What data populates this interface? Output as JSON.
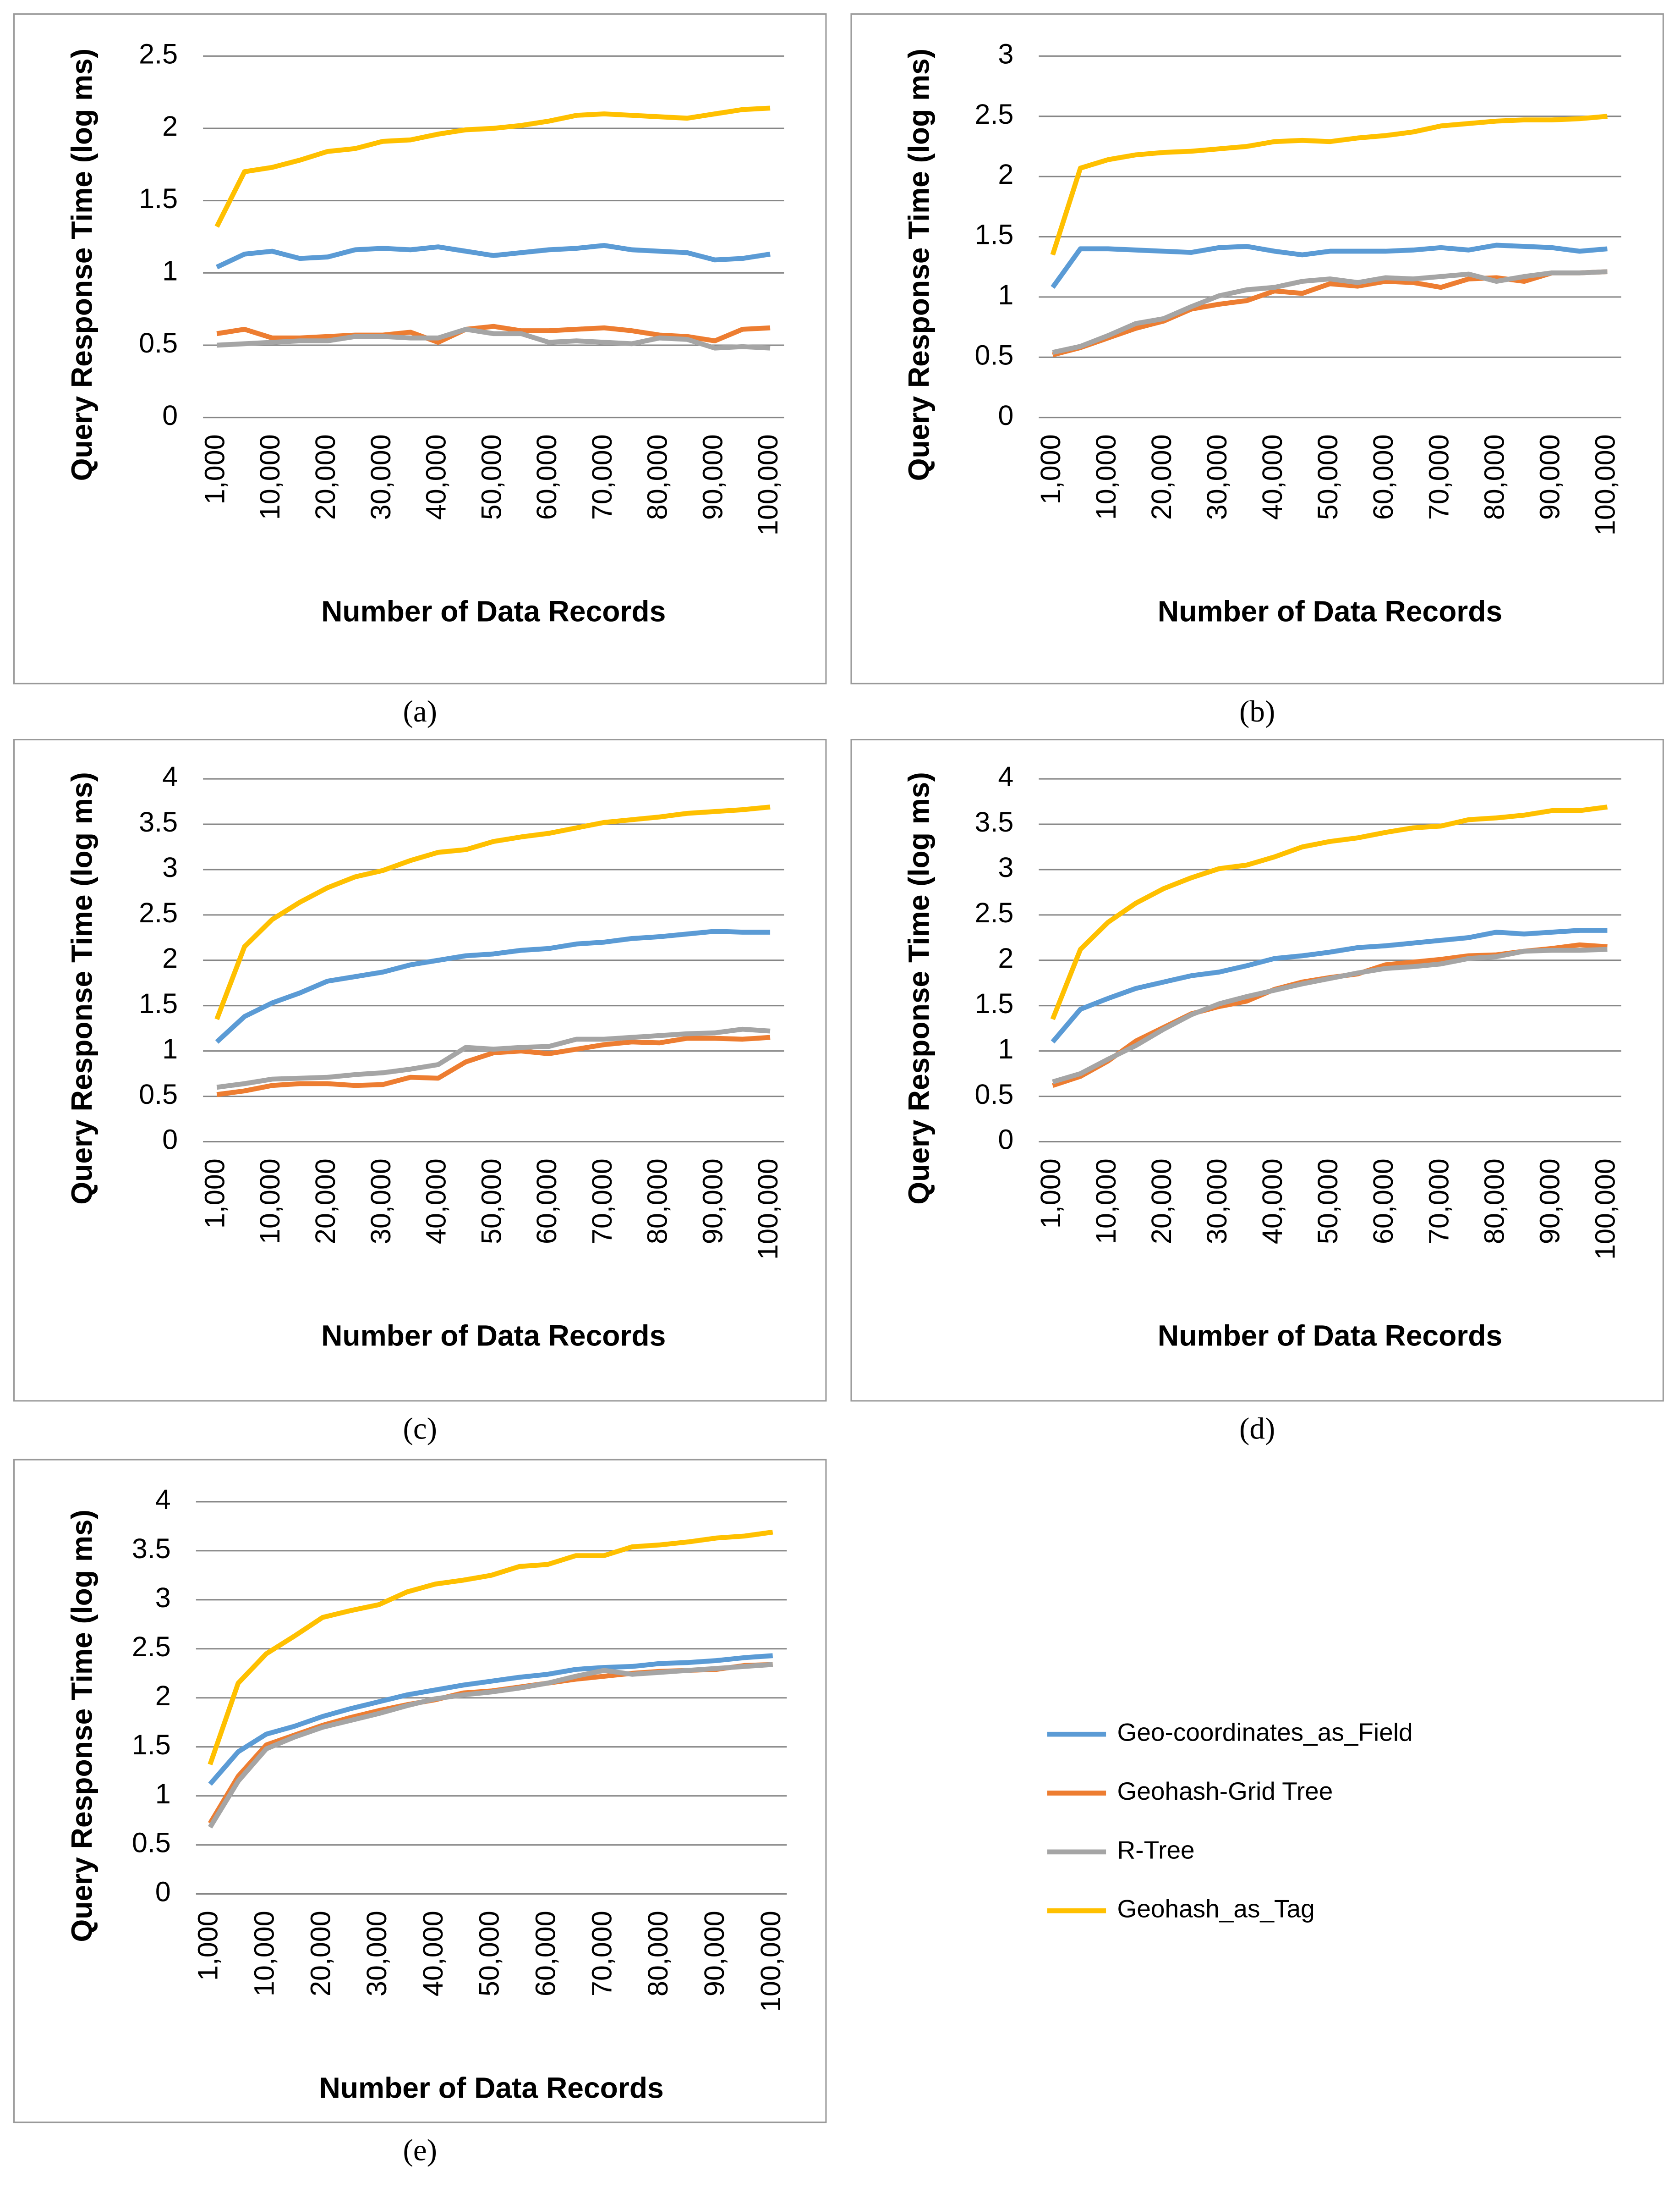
{
  "chart_data": [
    {
      "type": "line",
      "caption": "(a)",
      "y_label": "Query Response Time (log ms)",
      "x_label": "Number of Data Records",
      "categories": [
        "1,000",
        null,
        "10,000",
        null,
        "20,000",
        null,
        "30,000",
        null,
        "40,000",
        null,
        "50,000",
        null,
        "60,000",
        null,
        "70,000",
        null,
        "80,000",
        null,
        "90,000",
        null,
        "100,000"
      ],
      "ylim": [
        0,
        2.5
      ],
      "yticks": [
        0,
        0.5,
        1,
        1.5,
        2,
        2.5
      ],
      "grid": true,
      "series": [
        {
          "color": "#5b9bd5",
          "values": [
            1.04,
            1.13,
            1.15,
            1.1,
            1.11,
            1.16,
            1.17,
            1.16,
            1.18,
            1.15,
            1.12,
            1.14,
            1.16,
            1.17,
            1.19,
            1.16,
            1.15,
            1.14,
            1.09,
            1.1,
            1.13
          ]
        },
        {
          "color": "#ed7d31",
          "values": [
            0.58,
            0.61,
            0.55,
            0.55,
            0.56,
            0.57,
            0.57,
            0.59,
            0.52,
            0.61,
            0.63,
            0.6,
            0.6,
            0.61,
            0.62,
            0.6,
            0.57,
            0.56,
            0.53,
            0.61,
            0.62
          ]
        },
        {
          "color": "#a5a5a5",
          "values": [
            0.5,
            0.51,
            0.52,
            0.53,
            0.53,
            0.56,
            0.56,
            0.55,
            0.55,
            0.61,
            0.58,
            0.58,
            0.52,
            0.53,
            0.52,
            0.51,
            0.55,
            0.54,
            0.48,
            0.49,
            0.48
          ]
        },
        {
          "color": "#ffc000",
          "values": [
            1.32,
            1.7,
            1.73,
            1.78,
            1.84,
            1.86,
            1.91,
            1.92,
            1.96,
            1.99,
            2.0,
            2.02,
            2.05,
            2.09,
            2.1,
            2.09,
            2.08,
            2.07,
            2.1,
            2.13,
            2.14
          ]
        }
      ]
    },
    {
      "type": "line",
      "caption": "(b)",
      "y_label": "Query Response Time (log ms)",
      "x_label": "Number of Data Records",
      "categories": [
        "1,000",
        null,
        "10,000",
        null,
        "20,000",
        null,
        "30,000",
        null,
        "40,000",
        null,
        "50,000",
        null,
        "60,000",
        null,
        "70,000",
        null,
        "80,000",
        null,
        "90,000",
        null,
        "100,000"
      ],
      "ylim": [
        0,
        3
      ],
      "yticks": [
        0,
        0.5,
        1,
        1.5,
        2,
        2.5,
        3
      ],
      "grid": true,
      "series": [
        {
          "color": "#5b9bd5",
          "values": [
            1.08,
            1.4,
            1.4,
            1.39,
            1.38,
            1.37,
            1.41,
            1.42,
            1.38,
            1.35,
            1.38,
            1.38,
            1.38,
            1.39,
            1.41,
            1.39,
            1.43,
            1.42,
            1.41,
            1.38,
            1.4
          ]
        },
        {
          "color": "#ed7d31",
          "values": [
            0.52,
            0.58,
            0.66,
            0.74,
            0.8,
            0.9,
            0.94,
            0.97,
            1.05,
            1.03,
            1.11,
            1.09,
            1.13,
            1.12,
            1.08,
            1.15,
            1.16,
            1.13,
            1.2,
            1.2,
            1.21
          ]
        },
        {
          "color": "#a5a5a5",
          "values": [
            0.54,
            0.59,
            0.68,
            0.78,
            0.82,
            0.92,
            1.01,
            1.06,
            1.08,
            1.13,
            1.15,
            1.12,
            1.16,
            1.15,
            1.17,
            1.19,
            1.13,
            1.17,
            1.2,
            1.2,
            1.21
          ]
        },
        {
          "color": "#ffc000",
          "values": [
            1.35,
            2.07,
            2.14,
            2.18,
            2.2,
            2.21,
            2.23,
            2.25,
            2.29,
            2.3,
            2.29,
            2.32,
            2.34,
            2.37,
            2.42,
            2.44,
            2.46,
            2.47,
            2.47,
            2.48,
            2.5
          ]
        }
      ]
    },
    {
      "type": "line",
      "caption": "(c)",
      "y_label": "Query Response Time (log ms)",
      "x_label": "Number of Data Records",
      "categories": [
        "1,000",
        null,
        "10,000",
        null,
        "20,000",
        null,
        "30,000",
        null,
        "40,000",
        null,
        "50,000",
        null,
        "60,000",
        null,
        "70,000",
        null,
        "80,000",
        null,
        "90,000",
        null,
        "100,000"
      ],
      "ylim": [
        0,
        4
      ],
      "yticks": [
        0,
        0.5,
        1,
        1.5,
        2,
        2.5,
        3,
        3.5,
        4
      ],
      "grid": true,
      "series": [
        {
          "color": "#5b9bd5",
          "values": [
            1.1,
            1.38,
            1.53,
            1.64,
            1.77,
            1.82,
            1.87,
            1.95,
            2.0,
            2.05,
            2.07,
            2.11,
            2.13,
            2.18,
            2.2,
            2.24,
            2.26,
            2.29,
            2.32,
            2.31,
            2.31
          ]
        },
        {
          "color": "#ed7d31",
          "values": [
            0.52,
            0.56,
            0.62,
            0.64,
            0.64,
            0.62,
            0.63,
            0.71,
            0.7,
            0.88,
            0.98,
            1.0,
            0.97,
            1.02,
            1.07,
            1.1,
            1.09,
            1.14,
            1.14,
            1.13,
            1.15
          ]
        },
        {
          "color": "#a5a5a5",
          "values": [
            0.6,
            0.64,
            0.69,
            0.7,
            0.71,
            0.74,
            0.76,
            0.8,
            0.85,
            1.04,
            1.02,
            1.04,
            1.05,
            1.13,
            1.13,
            1.15,
            1.17,
            1.19,
            1.2,
            1.24,
            1.22
          ]
        },
        {
          "color": "#ffc000",
          "values": [
            1.35,
            2.15,
            2.45,
            2.64,
            2.8,
            2.92,
            2.99,
            3.1,
            3.19,
            3.22,
            3.31,
            3.36,
            3.4,
            3.46,
            3.52,
            3.55,
            3.58,
            3.62,
            3.64,
            3.66,
            3.69
          ]
        }
      ]
    },
    {
      "type": "line",
      "caption": "(d)",
      "y_label": "Query Response Time (log ms)",
      "x_label": "Number of Data Records",
      "categories": [
        "1,000",
        null,
        "10,000",
        null,
        "20,000",
        null,
        "30,000",
        null,
        "40,000",
        null,
        "50,000",
        null,
        "60,000",
        null,
        "70,000",
        null,
        "80,000",
        null,
        "90,000",
        null,
        "100,000"
      ],
      "ylim": [
        0,
        4
      ],
      "yticks": [
        0,
        0.5,
        1,
        1.5,
        2,
        2.5,
        3,
        3.5,
        4
      ],
      "grid": true,
      "series": [
        {
          "color": "#5b9bd5",
          "values": [
            1.1,
            1.46,
            1.58,
            1.69,
            1.76,
            1.83,
            1.87,
            1.94,
            2.02,
            2.05,
            2.09,
            2.14,
            2.16,
            2.19,
            2.22,
            2.25,
            2.31,
            2.29,
            2.31,
            2.33,
            2.33
          ]
        },
        {
          "color": "#ed7d31",
          "values": [
            0.62,
            0.72,
            0.89,
            1.11,
            1.26,
            1.41,
            1.49,
            1.55,
            1.68,
            1.76,
            1.81,
            1.85,
            1.95,
            1.98,
            2.01,
            2.05,
            2.06,
            2.1,
            2.13,
            2.17,
            2.15
          ]
        },
        {
          "color": "#a5a5a5",
          "values": [
            0.66,
            0.75,
            0.91,
            1.06,
            1.24,
            1.4,
            1.52,
            1.6,
            1.67,
            1.74,
            1.8,
            1.86,
            1.91,
            1.93,
            1.96,
            2.02,
            2.04,
            2.1,
            2.11,
            2.11,
            2.12
          ]
        },
        {
          "color": "#ffc000",
          "values": [
            1.35,
            2.12,
            2.42,
            2.63,
            2.79,
            2.91,
            3.01,
            3.05,
            3.14,
            3.25,
            3.31,
            3.35,
            3.41,
            3.46,
            3.48,
            3.55,
            3.57,
            3.6,
            3.65,
            3.65,
            3.69
          ]
        }
      ]
    },
    {
      "type": "line",
      "caption": "(e)",
      "y_label": "Query Response Time (log ms)",
      "x_label": "Number of Data Records",
      "categories": [
        "1,000",
        null,
        "10,000",
        null,
        "20,000",
        null,
        "30,000",
        null,
        "40,000",
        null,
        "50,000",
        null,
        "60,000",
        null,
        "70,000",
        null,
        "80,000",
        null,
        "90,000",
        null,
        "100,000"
      ],
      "ylim": [
        0,
        4
      ],
      "yticks": [
        0,
        0.5,
        1,
        1.5,
        2,
        2.5,
        3,
        3.5,
        4
      ],
      "grid": true,
      "legend": "right",
      "series": [
        {
          "name": "Geo-coordinates_as_Field",
          "color": "#5b9bd5",
          "values": [
            1.12,
            1.45,
            1.63,
            1.71,
            1.81,
            1.89,
            1.96,
            2.03,
            2.08,
            2.13,
            2.17,
            2.21,
            2.24,
            2.29,
            2.31,
            2.32,
            2.35,
            2.36,
            2.38,
            2.41,
            2.43
          ]
        },
        {
          "name": "Geohash-Grid Tree",
          "color": "#ed7d31",
          "values": [
            0.72,
            1.2,
            1.52,
            1.62,
            1.72,
            1.8,
            1.87,
            1.93,
            1.98,
            2.05,
            2.07,
            2.11,
            2.15,
            2.19,
            2.22,
            2.25,
            2.27,
            2.28,
            2.29,
            2.33,
            2.34
          ]
        },
        {
          "name": "R-Tree",
          "color": "#a5a5a5",
          "values": [
            0.68,
            1.15,
            1.48,
            1.6,
            1.7,
            1.77,
            1.84,
            1.92,
            1.99,
            2.03,
            2.06,
            2.1,
            2.15,
            2.22,
            2.28,
            2.24,
            2.26,
            2.28,
            2.3,
            2.32,
            2.34
          ]
        },
        {
          "name": "Geohash_as_Tag",
          "color": "#ffc000",
          "values": [
            1.32,
            2.15,
            2.45,
            2.63,
            2.82,
            2.89,
            2.95,
            3.08,
            3.16,
            3.2,
            3.25,
            3.34,
            3.36,
            3.45,
            3.45,
            3.54,
            3.56,
            3.59,
            3.63,
            3.65,
            3.69
          ]
        }
      ]
    }
  ]
}
